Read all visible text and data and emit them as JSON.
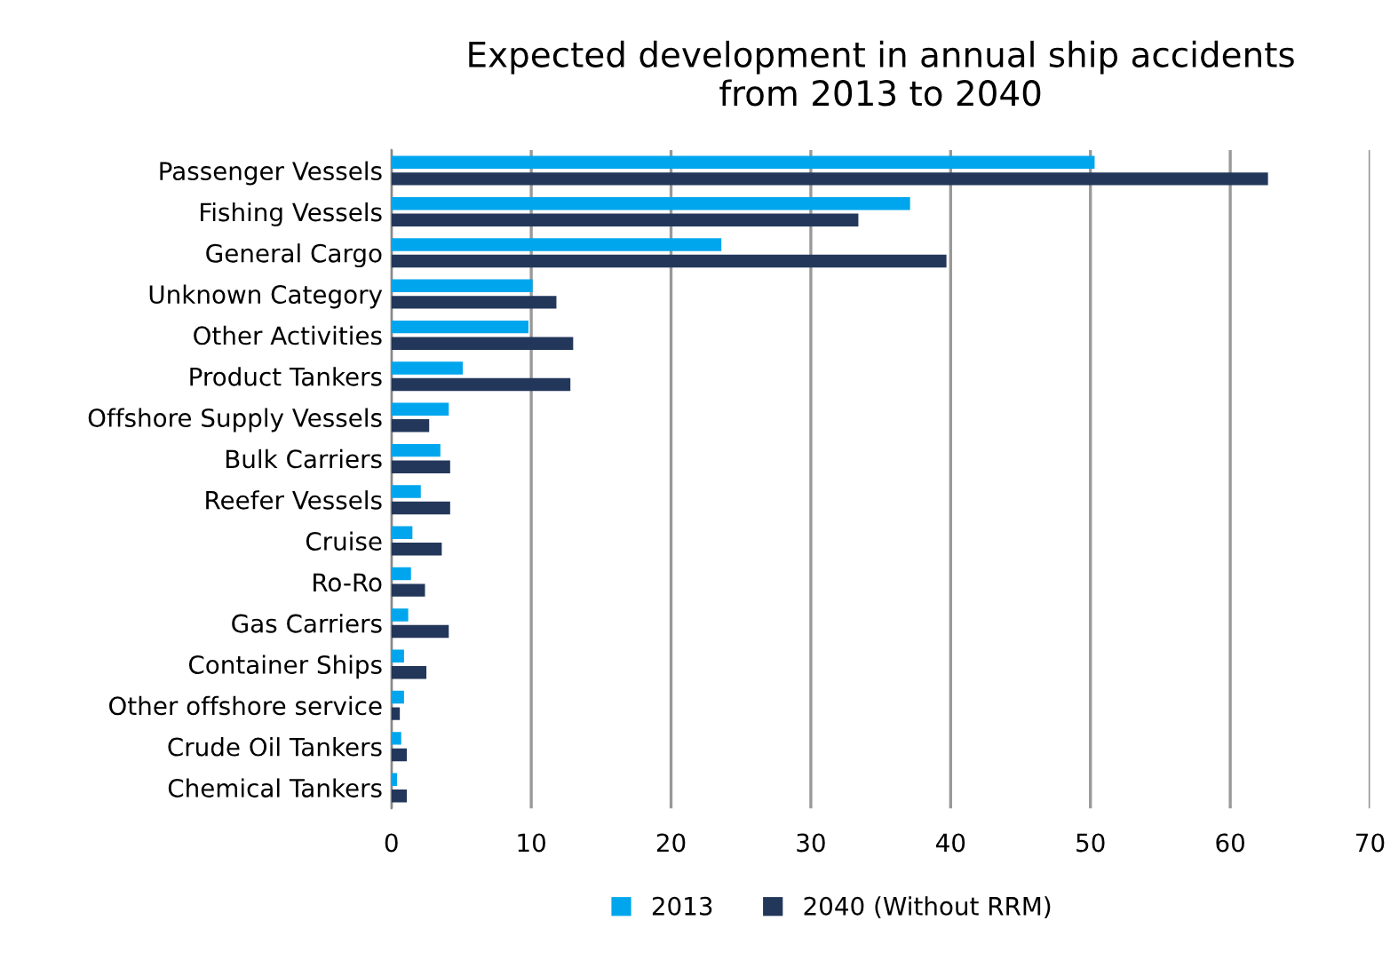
{
  "chart_data": {
    "type": "bar",
    "orientation": "horizontal",
    "title": "Expected development in annual ship accidents\nfrom 2013 to 2040",
    "categories": [
      "Passenger Vessels",
      "Fishing Vessels",
      "General Cargo",
      "Unknown Category",
      "Other Activities",
      "Product Tankers",
      "Offshore Supply Vessels",
      "Bulk Carriers",
      "Reefer Vessels",
      "Cruise",
      "Ro-Ro",
      "Gas Carriers",
      "Container Ships",
      "Other offshore service",
      "Crude Oil Tankers",
      "Chemical Tankers"
    ],
    "series": [
      {
        "name": "2013",
        "color": "#00a6ed",
        "values": [
          50.3,
          37.1,
          23.6,
          10.1,
          9.8,
          5.1,
          4.1,
          3.5,
          2.1,
          1.5,
          1.4,
          1.2,
          0.9,
          0.9,
          0.7,
          0.4
        ]
      },
      {
        "name": "2040 (Without RRM)",
        "color": "#22375a",
        "values": [
          62.7,
          33.4,
          39.7,
          11.8,
          13.0,
          12.8,
          2.7,
          4.2,
          4.2,
          3.6,
          2.4,
          4.1,
          2.5,
          0.6,
          1.1,
          1.1
        ]
      }
    ],
    "xlim": [
      0,
      70
    ],
    "xticks": [
      0,
      10,
      20,
      30,
      40,
      50,
      60,
      70
    ],
    "grid": "x",
    "legend": "bottom"
  }
}
